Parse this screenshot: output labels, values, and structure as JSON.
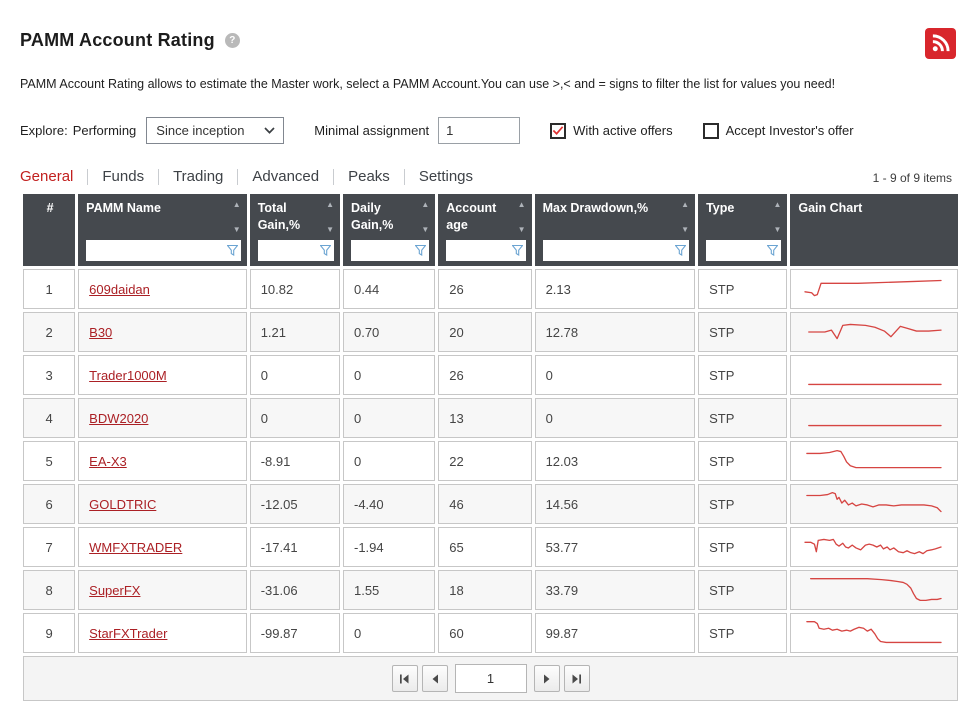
{
  "page": {
    "title": "PAMM Account Rating",
    "help_icon": "?",
    "description": "PAMM Account Rating allows to estimate the Master work, select a PAMM Account.You can use >,< and = signs to filter the list for values you need!"
  },
  "colors": {
    "accent_red": "#c2201f",
    "rss_red": "#d8262c",
    "link_red": "#ab2025",
    "spark_red": "#d64542",
    "header_bg": "#45494e",
    "check_red": "#e03131",
    "funnel_blue": "#6ba4d2"
  },
  "controls": {
    "explore_label": "Explore:",
    "explore_value": "Performing",
    "period_select": {
      "value": "Since inception"
    },
    "minimal_assignment_label": "Minimal assignment",
    "minimal_assignment_value": "1",
    "with_active_offers": {
      "label": "With active offers",
      "checked": true
    },
    "accept_investors_offer": {
      "label": "Accept Investor's offer",
      "checked": false
    }
  },
  "tabs": {
    "items": [
      {
        "label": "General",
        "active": true
      },
      {
        "label": "Funds",
        "active": false
      },
      {
        "label": "Trading",
        "active": false
      },
      {
        "label": "Advanced",
        "active": false
      },
      {
        "label": "Peaks",
        "active": false
      },
      {
        "label": "Settings",
        "active": false
      }
    ],
    "items_count": "1 - 9 of 9 items"
  },
  "table": {
    "columns": [
      {
        "label": "#",
        "sortable": false,
        "filterable": false
      },
      {
        "label": "PAMM Name",
        "sortable": true,
        "filterable": true
      },
      {
        "label": "Total Gain,%",
        "sortable": true,
        "filterable": true
      },
      {
        "label": "Daily Gain,%",
        "sortable": true,
        "filterable": true
      },
      {
        "label": "Account age",
        "sortable": true,
        "filterable": true
      },
      {
        "label": "Max Drawdown,%",
        "sortable": true,
        "filterable": true
      },
      {
        "label": "Type",
        "sortable": true,
        "filterable": true
      },
      {
        "label": "Gain Chart",
        "sortable": false,
        "filterable": false
      }
    ],
    "rows": [
      {
        "index": "1",
        "name": "609daidan",
        "total_gain": "10.82",
        "daily_gain": "0.44",
        "account_age": "26",
        "max_drawdown": "2.13",
        "type": "STP",
        "spark": [
          [
            4,
            21
          ],
          [
            11,
            22
          ],
          [
            14,
            25
          ],
          [
            17,
            24
          ],
          [
            21,
            12
          ],
          [
            60,
            12
          ],
          [
            90,
            11
          ],
          [
            120,
            10
          ],
          [
            148,
            9
          ]
        ]
      },
      {
        "index": "2",
        "name": "B30",
        "total_gain": "1.21",
        "daily_gain": "0.70",
        "account_age": "20",
        "max_drawdown": "12.78",
        "type": "STP",
        "spark": [
          [
            8,
            18
          ],
          [
            25,
            18
          ],
          [
            32,
            16
          ],
          [
            38,
            25
          ],
          [
            44,
            11
          ],
          [
            52,
            10
          ],
          [
            68,
            11
          ],
          [
            78,
            13
          ],
          [
            88,
            17
          ],
          [
            95,
            23
          ],
          [
            105,
            12
          ],
          [
            112,
            14
          ],
          [
            122,
            17
          ],
          [
            135,
            17
          ],
          [
            148,
            16
          ]
        ]
      },
      {
        "index": "3",
        "name": "Trader1000M",
        "total_gain": "0",
        "daily_gain": "0",
        "account_age": "26",
        "max_drawdown": "0",
        "type": "STP",
        "spark": [
          [
            8,
            28
          ],
          [
            148,
            28
          ]
        ]
      },
      {
        "index": "4",
        "name": "BDW2020",
        "total_gain": "0",
        "daily_gain": "0",
        "account_age": "13",
        "max_drawdown": "0",
        "type": "STP",
        "spark": [
          [
            8,
            26
          ],
          [
            148,
            26
          ]
        ]
      },
      {
        "index": "5",
        "name": "EA-X3",
        "total_gain": "-8.91",
        "daily_gain": "0",
        "account_age": "22",
        "max_drawdown": "12.03",
        "type": "STP",
        "spark": [
          [
            6,
            10
          ],
          [
            20,
            10
          ],
          [
            30,
            9
          ],
          [
            38,
            7
          ],
          [
            42,
            8
          ],
          [
            45,
            13
          ],
          [
            48,
            19
          ],
          [
            52,
            23
          ],
          [
            58,
            25
          ],
          [
            70,
            25
          ],
          [
            148,
            25
          ]
        ]
      },
      {
        "index": "6",
        "name": "GOLDTRIC",
        "total_gain": "-12.05",
        "daily_gain": "-4.40",
        "account_age": "46",
        "max_drawdown": "14.56",
        "type": "STP",
        "spark": [
          [
            6,
            9
          ],
          [
            20,
            9
          ],
          [
            28,
            8
          ],
          [
            33,
            6
          ],
          [
            36,
            7
          ],
          [
            38,
            13
          ],
          [
            40,
            11
          ],
          [
            43,
            17
          ],
          [
            46,
            14
          ],
          [
            50,
            19
          ],
          [
            54,
            17
          ],
          [
            58,
            20
          ],
          [
            64,
            18
          ],
          [
            70,
            19
          ],
          [
            76,
            21
          ],
          [
            82,
            19
          ],
          [
            90,
            19
          ],
          [
            98,
            20
          ],
          [
            106,
            19
          ],
          [
            114,
            19
          ],
          [
            122,
            19
          ],
          [
            130,
            19
          ],
          [
            138,
            20
          ],
          [
            144,
            22
          ],
          [
            148,
            26
          ]
        ]
      },
      {
        "index": "7",
        "name": "WMFXTRADER",
        "total_gain": "-17.41",
        "daily_gain": "-1.94",
        "account_age": "65",
        "max_drawdown": "53.77",
        "type": "STP",
        "spark": [
          [
            4,
            13
          ],
          [
            10,
            13
          ],
          [
            14,
            15
          ],
          [
            16,
            23
          ],
          [
            18,
            11
          ],
          [
            24,
            10
          ],
          [
            30,
            11
          ],
          [
            34,
            10
          ],
          [
            37,
            15
          ],
          [
            40,
            17
          ],
          [
            44,
            14
          ],
          [
            47,
            18
          ],
          [
            50,
            19
          ],
          [
            54,
            16
          ],
          [
            58,
            19
          ],
          [
            63,
            21
          ],
          [
            68,
            16
          ],
          [
            72,
            15
          ],
          [
            76,
            16
          ],
          [
            80,
            18
          ],
          [
            84,
            16
          ],
          [
            87,
            20
          ],
          [
            91,
            18
          ],
          [
            94,
            21
          ],
          [
            98,
            19
          ],
          [
            103,
            23
          ],
          [
            108,
            24
          ],
          [
            112,
            22
          ],
          [
            116,
            24
          ],
          [
            120,
            25
          ],
          [
            125,
            23
          ],
          [
            129,
            25
          ],
          [
            133,
            22
          ],
          [
            138,
            21
          ],
          [
            142,
            20
          ],
          [
            148,
            18
          ]
        ]
      },
      {
        "index": "8",
        "name": "SuperFX",
        "total_gain": "-31.06",
        "daily_gain": "1.55",
        "account_age": "18",
        "max_drawdown": "33.79",
        "type": "STP",
        "spark": [
          [
            10,
            6
          ],
          [
            55,
            6
          ],
          [
            70,
            6
          ],
          [
            85,
            7
          ],
          [
            95,
            8
          ],
          [
            102,
            9
          ],
          [
            108,
            10
          ],
          [
            112,
            12
          ],
          [
            116,
            16
          ],
          [
            119,
            22
          ],
          [
            122,
            27
          ],
          [
            126,
            29
          ],
          [
            132,
            29
          ],
          [
            138,
            28
          ],
          [
            144,
            28
          ],
          [
            148,
            27
          ]
        ]
      },
      {
        "index": "9",
        "name": "StarFXTrader",
        "total_gain": "-99.87",
        "daily_gain": "0",
        "account_age": "60",
        "max_drawdown": "99.87",
        "type": "STP",
        "spark": [
          [
            6,
            6
          ],
          [
            14,
            6
          ],
          [
            17,
            8
          ],
          [
            19,
            13
          ],
          [
            24,
            14
          ],
          [
            29,
            13
          ],
          [
            33,
            15
          ],
          [
            38,
            14
          ],
          [
            43,
            16
          ],
          [
            48,
            15
          ],
          [
            52,
            16
          ],
          [
            56,
            14
          ],
          [
            61,
            12
          ],
          [
            66,
            13
          ],
          [
            70,
            16
          ],
          [
            74,
            14
          ],
          [
            78,
            19
          ],
          [
            81,
            24
          ],
          [
            84,
            27
          ],
          [
            90,
            28
          ],
          [
            148,
            28
          ]
        ]
      }
    ]
  },
  "pagination": {
    "page": "1"
  }
}
